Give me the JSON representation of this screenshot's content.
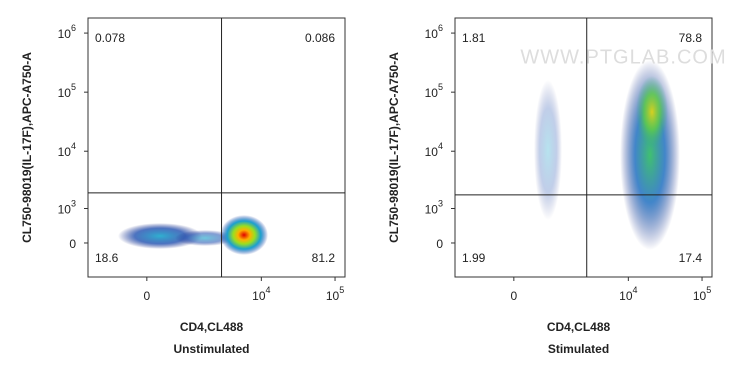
{
  "chart_data": [
    {
      "type": "scatter",
      "x_label": "CD4,CL488",
      "y_label": "CL750-98019(IL-17F),APC-A750-A",
      "caption": "Unstimulated",
      "xlim": [
        -1714,
        136500
      ],
      "ylim": [
        -980,
        1800000
      ],
      "xticks": [
        0,
        {
          "value": 10000,
          "label": "10",
          "exponent": "4"
        },
        {
          "value": 100000,
          "label": "10",
          "exponent": "5"
        }
      ],
      "yticks": [
        0,
        {
          "value": 1000,
          "label": "10",
          "exponent": "3"
        },
        {
          "value": 10000,
          "label": "10",
          "exponent": "4"
        },
        {
          "value": 100000,
          "label": "10",
          "exponent": "5"
        },
        {
          "value": 1000000,
          "label": "10",
          "exponent": "6"
        }
      ],
      "gates": {
        "x": 2860,
        "y": 1930
      },
      "quadrant_labels": {
        "upper_left": 0.078,
        "upper_right": 0.086,
        "lower_left": 18.6,
        "lower_right": 81.2
      }
    },
    {
      "type": "scatter",
      "x_label": "CD4,CL488",
      "y_label": "CL750-98019(IL-17F),APC-A750-A",
      "caption": "Stimulated",
      "watermark": "WWW.PTGLAB.COM",
      "xlim": [
        -1714,
        136500
      ],
      "ylim": [
        -980,
        1800000
      ],
      "xticks": [
        0,
        {
          "value": 10000,
          "label": "10",
          "exponent": "4"
        },
        {
          "value": 100000,
          "label": "10",
          "exponent": "5"
        }
      ],
      "yticks": [
        0,
        {
          "value": 1000,
          "label": "10",
          "exponent": "3"
        },
        {
          "value": 10000,
          "label": "10",
          "exponent": "4"
        },
        {
          "value": 100000,
          "label": "10",
          "exponent": "5"
        },
        {
          "value": 1000000,
          "label": "10",
          "exponent": "6"
        }
      ],
      "gates": {
        "x": 2700,
        "y": 1780
      },
      "quadrant_labels": {
        "upper_left": 1.81,
        "upper_right": 78.8,
        "lower_left": 1.99,
        "lower_right": 17.4
      }
    }
  ]
}
